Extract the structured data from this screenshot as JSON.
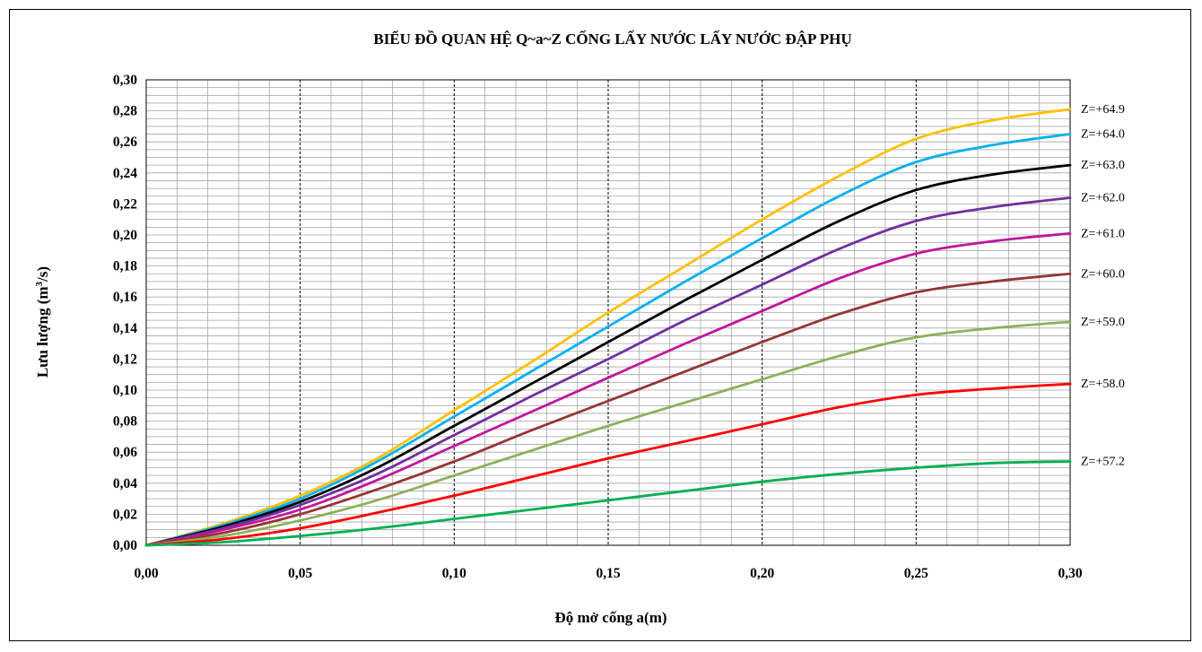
{
  "chart_data": {
    "type": "line",
    "title": "BIỂU ĐỒ QUAN HỆ Q~a~Z CỐNG LẤY NƯỚC LẤY NƯỚC ĐẬP PHỤ",
    "xlabel": "Độ mở cống a(m)",
    "ylabel_main": "Lưu lượng (m",
    "ylabel_sup": "3",
    "ylabel_tail": "/s)",
    "xlim": [
      0,
      0.3
    ],
    "ylim": [
      0,
      0.3
    ],
    "x_ticks": [
      "0,00",
      "0,05",
      "0,10",
      "0,15",
      "0,20",
      "0,25",
      "0,30"
    ],
    "y_ticks": [
      "0,00",
      "0,02",
      "0,04",
      "0,06",
      "0,08",
      "0,10",
      "0,12",
      "0,14",
      "0,16",
      "0,18",
      "0,20",
      "0,22",
      "0,24",
      "0,26",
      "0,28",
      "0,30"
    ],
    "grid": true,
    "legend": "labels at right end of lines",
    "x": [
      0,
      0.025,
      0.05,
      0.075,
      0.1,
      0.125,
      0.15,
      0.175,
      0.2,
      0.225,
      0.25,
      0.275,
      0.3
    ],
    "series": [
      {
        "name": "Z=+64.9",
        "color": "#FFC000",
        "values": [
          0,
          0.014,
          0.032,
          0.056,
          0.087,
          0.118,
          0.15,
          0.18,
          0.21,
          0.238,
          0.262,
          0.274,
          0.281
        ]
      },
      {
        "name": "Z=+64.0",
        "color": "#00B0F0",
        "values": [
          0,
          0.013,
          0.03,
          0.054,
          0.083,
          0.112,
          0.141,
          0.17,
          0.198,
          0.225,
          0.247,
          0.258,
          0.265
        ]
      },
      {
        "name": "Z=+63.0",
        "color": "#000000",
        "values": [
          0,
          0.012,
          0.028,
          0.05,
          0.077,
          0.104,
          0.131,
          0.158,
          0.184,
          0.209,
          0.229,
          0.239,
          0.245
        ]
      },
      {
        "name": "Z=+62.0",
        "color": "#7030A0",
        "values": [
          0,
          0.011,
          0.026,
          0.046,
          0.071,
          0.096,
          0.12,
          0.145,
          0.168,
          0.191,
          0.209,
          0.218,
          0.224
        ]
      },
      {
        "name": "Z=+61.0",
        "color": "#C0159E",
        "values": [
          0,
          0.01,
          0.023,
          0.042,
          0.064,
          0.086,
          0.108,
          0.13,
          0.151,
          0.172,
          0.188,
          0.196,
          0.201
        ]
      },
      {
        "name": "Z=+60.0",
        "color": "#943634",
        "values": [
          0,
          0.008,
          0.02,
          0.036,
          0.054,
          0.074,
          0.093,
          0.112,
          0.131,
          0.149,
          0.163,
          0.17,
          0.175
        ]
      },
      {
        "name": "Z=+59.0",
        "color": "#8DB05A",
        "values": [
          0,
          0.006,
          0.016,
          0.029,
          0.045,
          0.061,
          0.077,
          0.092,
          0.107,
          0.122,
          0.134,
          0.14,
          0.144
        ]
      },
      {
        "name": "Z=+58.0",
        "color": "#FF0000",
        "values": [
          0,
          0.004,
          0.011,
          0.021,
          0.032,
          0.044,
          0.056,
          0.067,
          0.078,
          0.089,
          0.097,
          0.101,
          0.104
        ]
      },
      {
        "name": "Z=+57.2",
        "color": "#00B050",
        "values": [
          0,
          0.002,
          0.006,
          0.011,
          0.017,
          0.023,
          0.029,
          0.035,
          0.041,
          0.046,
          0.05,
          0.053,
          0.054
        ]
      }
    ]
  }
}
